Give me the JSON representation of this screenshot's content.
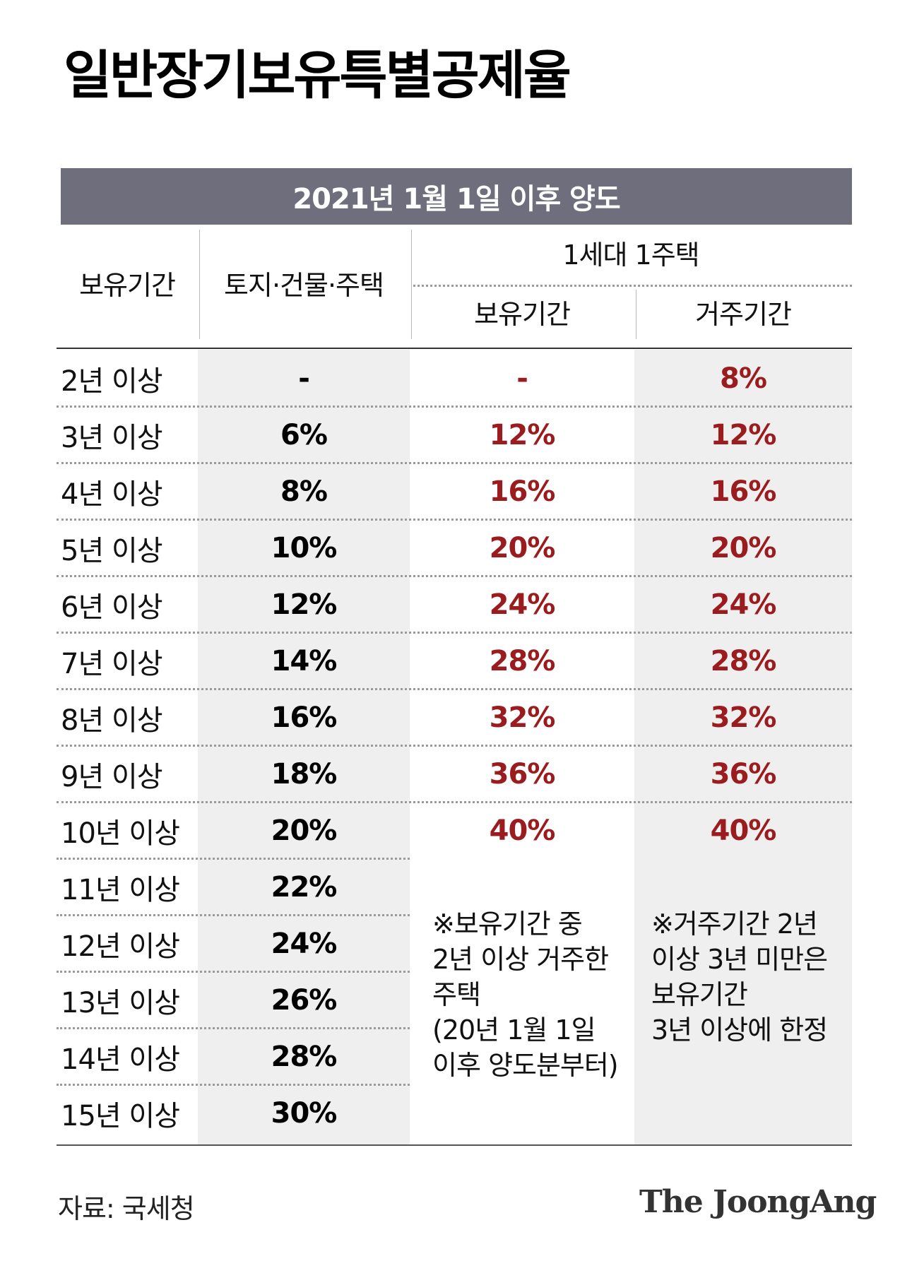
{
  "title": "일반장기보유특별공제율",
  "banner": "2021년 1월 1일 이후 양도",
  "headers": {
    "period": "보유기간",
    "land": "토지·건물·주택",
    "one_house": "1세대 1주택",
    "holding": "보유기간",
    "residence": "거주기간"
  },
  "chart_data": {
    "type": "table",
    "columns": [
      "보유기간",
      "토지·건물·주택",
      "1세대 1주택 보유기간",
      "1세대 1주택 거주기간"
    ],
    "rows": [
      {
        "period": "2년 이상",
        "land": "-",
        "holding": "-",
        "residence": "8%"
      },
      {
        "period": "3년 이상",
        "land": "6%",
        "holding": "12%",
        "residence": "12%"
      },
      {
        "period": "4년 이상",
        "land": "8%",
        "holding": "16%",
        "residence": "16%"
      },
      {
        "period": "5년 이상",
        "land": "10%",
        "holding": "20%",
        "residence": "20%"
      },
      {
        "period": "6년 이상",
        "land": "12%",
        "holding": "24%",
        "residence": "24%"
      },
      {
        "period": "7년 이상",
        "land": "14%",
        "holding": "28%",
        "residence": "28%"
      },
      {
        "period": "8년 이상",
        "land": "16%",
        "holding": "32%",
        "residence": "32%"
      },
      {
        "period": "9년 이상",
        "land": "18%",
        "holding": "36%",
        "residence": "36%"
      },
      {
        "period": "10년 이상",
        "land": "20%",
        "holding": "40%",
        "residence": "40%"
      },
      {
        "period": "11년 이상",
        "land": "22%",
        "holding": "",
        "residence": ""
      },
      {
        "period": "12년 이상",
        "land": "24%",
        "holding": "",
        "residence": ""
      },
      {
        "period": "13년 이상",
        "land": "26%",
        "holding": "",
        "residence": ""
      },
      {
        "period": "14년 이상",
        "land": "28%",
        "holding": "",
        "residence": ""
      },
      {
        "period": "15년 이상",
        "land": "30%",
        "holding": "",
        "residence": ""
      }
    ]
  },
  "notes": {
    "holding": "※보유기간 중\n2년 이상 거주한\n주택\n(20년 1월 1일\n이후 양도분부터)",
    "residence": "※거주기간 2년\n이상 3년 미만은\n보유기간\n3년 이상에 한정"
  },
  "source": "자료: 국세청",
  "logo": "The JoongAng",
  "colors": {
    "banner": "#6e6e7c",
    "accent_red": "#9b1c1f",
    "shade": "#efefef"
  }
}
